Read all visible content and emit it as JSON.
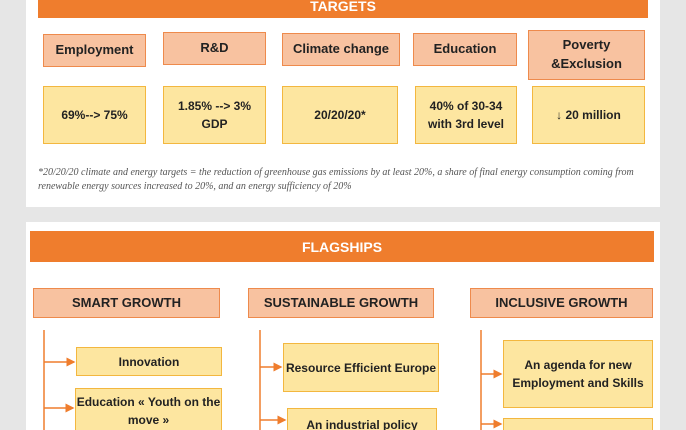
{
  "targets": {
    "title": "TARGETS",
    "headers": [
      "Employment",
      "R&D",
      "Climate change",
      "Education",
      "Poverty &Exclusion"
    ],
    "values": [
      "69%--> 75%",
      "1.85% --> 3% GDP",
      "20/20/20*",
      "40% of 30-34 with 3rd level",
      "↓ 20 million"
    ],
    "note": "*20/20/20 climate and energy targets = the reduction of greenhouse gas emissions by at least 20%, a share of final energy consumption coming from renewable energy sources increased to 20%, and an energy sufficiency of 20%"
  },
  "flagships": {
    "title": "FLAGSHIPS",
    "columns": [
      {
        "header": "SMART GROWTH",
        "items": [
          "Innovation",
          "Education « Youth on the move »"
        ]
      },
      {
        "header": "SUSTAINABLE GROWTH",
        "items": [
          "Resource Efficient Europe",
          "An industrial policy"
        ]
      },
      {
        "header": "INCLUSIVE GROWTH",
        "items": [
          "An agenda for new Employment and Skills"
        ]
      }
    ]
  }
}
